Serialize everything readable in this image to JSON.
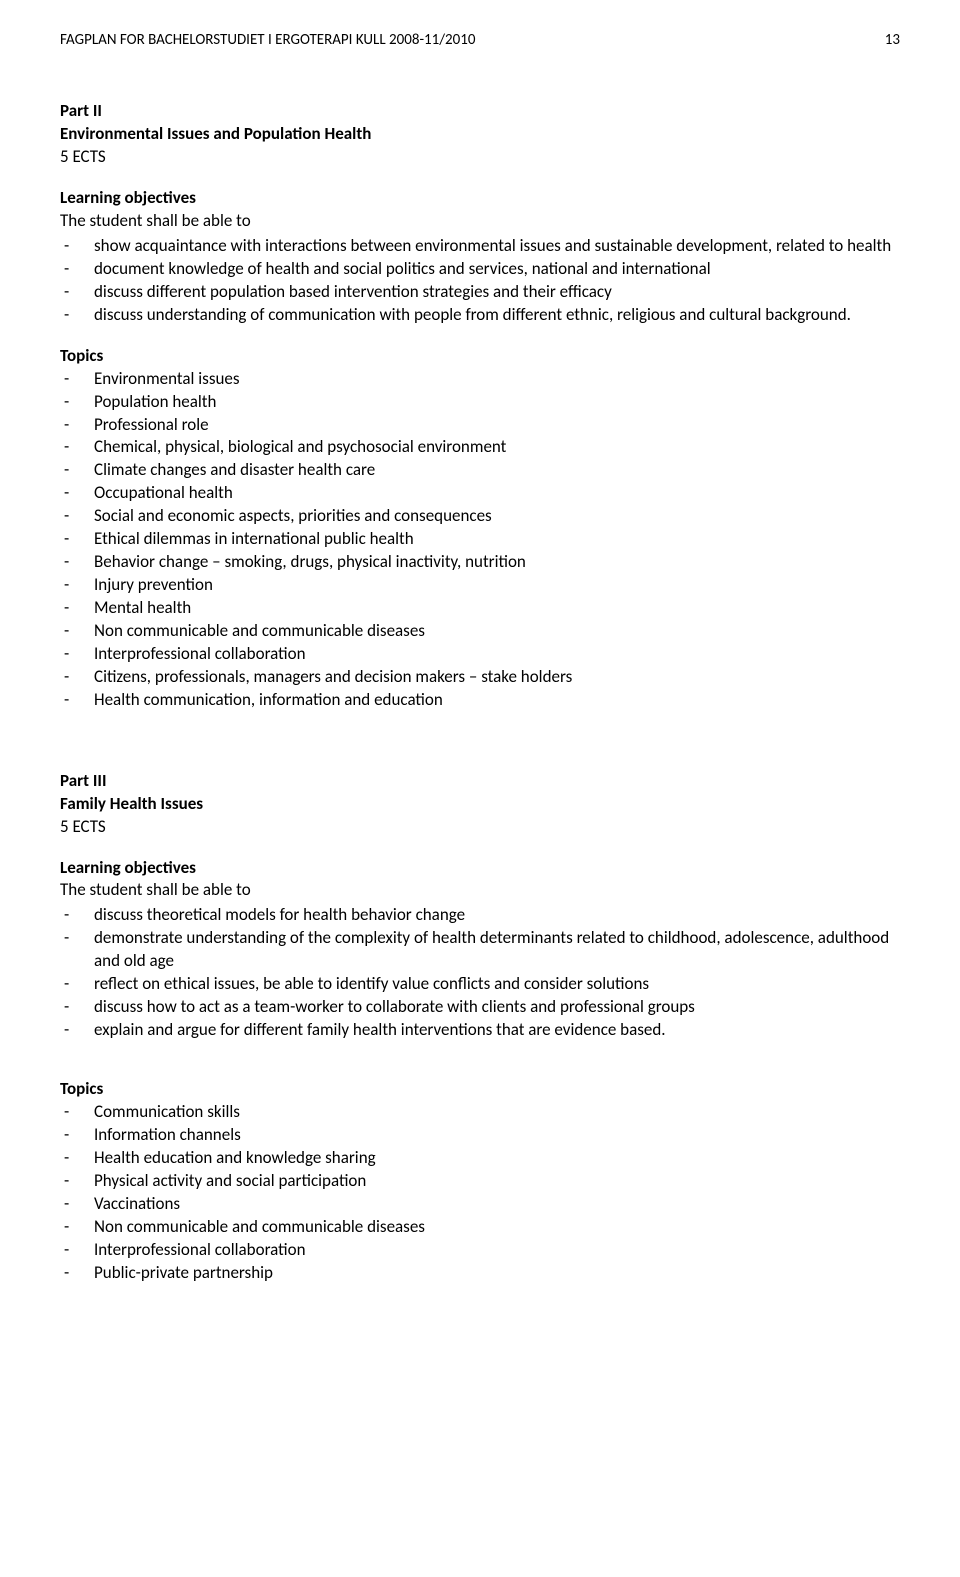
{
  "header": {
    "title": "FAGPLAN FOR BACHELORSTUDIET I ERGOTERAPI KULL 2008-11/2010",
    "page": "13"
  },
  "part2": {
    "part_label": "Part II",
    "section_title": "Environmental Issues and Population Health",
    "ects": "5 ECTS",
    "lo_label": "Learning objectives",
    "lo_intro": "The student shall be able to",
    "lo_items": [
      "show acquaintance with interactions between environmental issues and sustainable development, related to health",
      "document knowledge of health and social politics and services, national and international",
      "discuss different population based intervention strategies and their efficacy",
      "discuss understanding of communication with people from different ethnic, religious and cultural background."
    ],
    "topics_label": "Topics",
    "topics": [
      "Environmental issues",
      "Population health",
      "Professional role",
      "Chemical, physical, biological and psychosocial environment",
      "Climate changes and disaster health care",
      "Occupational health",
      "Social and economic aspects, priorities and consequences",
      "Ethical dilemmas in international public health",
      "Behavior change – smoking, drugs, physical inactivity, nutrition",
      "Injury prevention",
      "Mental health",
      "Non communicable and communicable diseases",
      "Interprofessional collaboration",
      "Citizens, professionals, managers and decision makers – stake holders",
      "Health communication, information and education"
    ]
  },
  "part3": {
    "part_label": "Part III",
    "section_title": "Family Health Issues",
    "ects": "5 ECTS",
    "lo_label": "Learning objectives",
    "lo_intro": "The student shall be able to",
    "lo_items": [
      "discuss theoretical models for health behavior change",
      "demonstrate understanding of the complexity of health determinants related to childhood, adolescence, adulthood and old age",
      "reflect on ethical issues, be able to identify value conflicts and consider solutions",
      "discuss how to act as a team-worker to collaborate with clients and professional groups",
      "explain and argue for different family health interventions that are evidence based."
    ],
    "topics_label": "Topics",
    "topics": [
      "Communication skills",
      "Information channels",
      "Health education and knowledge sharing",
      "Physical activity and social participation",
      "Vaccinations",
      "Non communicable and communicable diseases",
      "Interprofessional collaboration",
      "Public-private partnership"
    ]
  }
}
